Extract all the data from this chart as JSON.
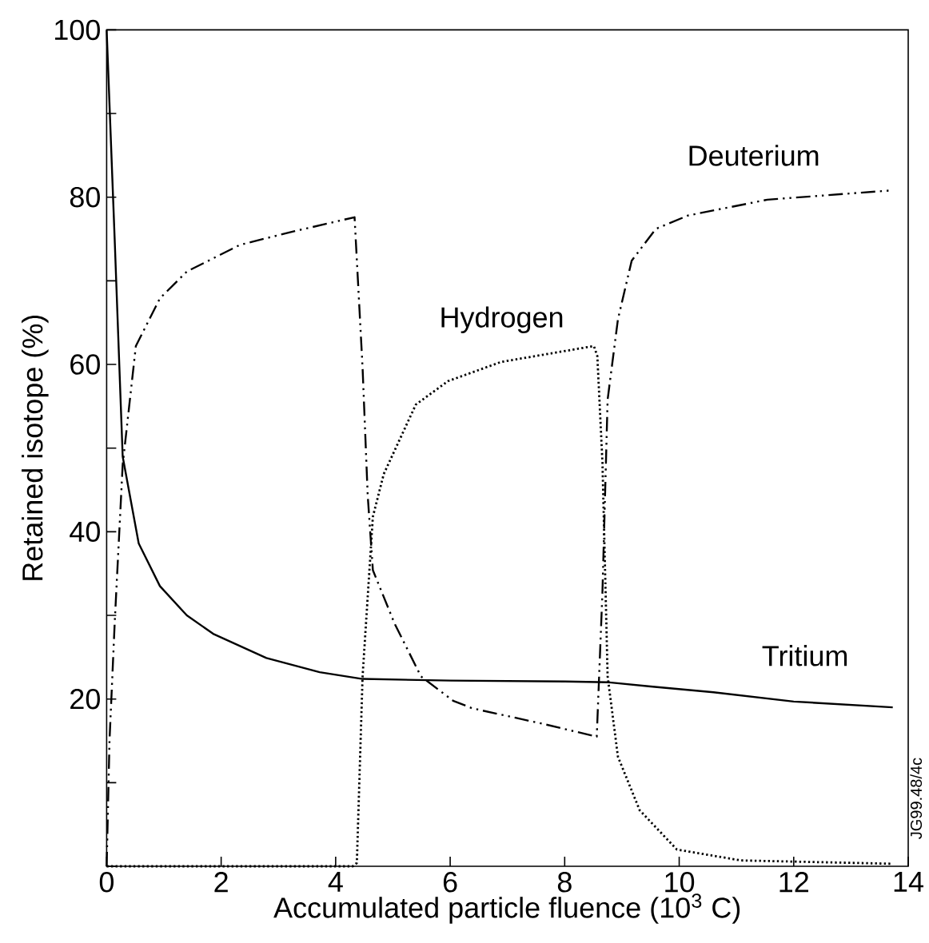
{
  "chart_data": {
    "type": "line",
    "xlabel": "Accumulated particle fluence (10$^{3}$ C)",
    "ylabel": "Retained isotope (%)",
    "xlim": [
      0,
      14
    ],
    "ylim": [
      0,
      100
    ],
    "xticks": [
      0,
      2,
      4,
      6,
      8,
      10,
      12,
      14
    ],
    "yticks": [
      {
        "value": 0,
        "label": null
      },
      {
        "value": 10,
        "label": null
      },
      20,
      {
        "value": 30,
        "label": null
      },
      40,
      {
        "value": 50,
        "label": null
      },
      60,
      {
        "value": 70,
        "label": null
      },
      80,
      {
        "value": 90,
        "label": null
      },
      100
    ],
    "grid": false,
    "annotations": [
      "JG99.48/4c"
    ],
    "series": [
      {
        "name": "Tritium",
        "color": "#000000",
        "line_style": "solid",
        "x": [
          0,
          0.14,
          0.28,
          0.56,
          0.93,
          1.4,
          1.86,
          2.79,
          3.72,
          4.47,
          6,
          8,
          8.76,
          9.5,
          10.6,
          12,
          13.73
        ],
        "values": [
          100,
          75,
          49,
          38.6,
          33.5,
          30,
          27.8,
          24.9,
          23.2,
          22.4,
          22.2,
          22.1,
          22,
          21.5,
          20.8,
          19.7,
          19
        ]
      },
      {
        "name": "Hydrogen",
        "color": "#000000",
        "line_style": "dotted",
        "x": [
          0,
          4.3,
          4.37,
          4.47,
          4.65,
          4.84,
          5.4,
          5.96,
          6.89,
          8.51,
          8.57,
          8.66,
          8.75,
          8.93,
          9.31,
          9.96,
          11.08,
          13.73
        ],
        "values": [
          0,
          0,
          0.4,
          22.7,
          41.8,
          46.9,
          55.2,
          58,
          60.3,
          62.2,
          61,
          48.2,
          22.7,
          13.1,
          6.7,
          2,
          0.7,
          0.3
        ]
      },
      {
        "name": "Deuterium",
        "color": "#000000",
        "line_style": "dashed",
        "x": [
          0,
          0.05,
          0.14,
          0.28,
          0.51,
          0.93,
          1.4,
          2.33,
          3.26,
          4.33,
          4.47,
          4.56,
          4.65,
          5.03,
          5.49,
          6.05,
          6.38,
          7.64,
          8.56,
          8.66,
          8.75,
          8.93,
          9.17,
          9.59,
          10.15,
          11.54,
          13.69
        ],
        "values": [
          0,
          15,
          29,
          48,
          62.2,
          67.9,
          71.1,
          74.3,
          75.9,
          77.6,
          59.6,
          44.3,
          35.4,
          29,
          22.7,
          19.8,
          18.9,
          17,
          15.5,
          32.9,
          55.8,
          65.4,
          72.4,
          76.2,
          77.8,
          79.7,
          80.8
        ]
      }
    ]
  }
}
